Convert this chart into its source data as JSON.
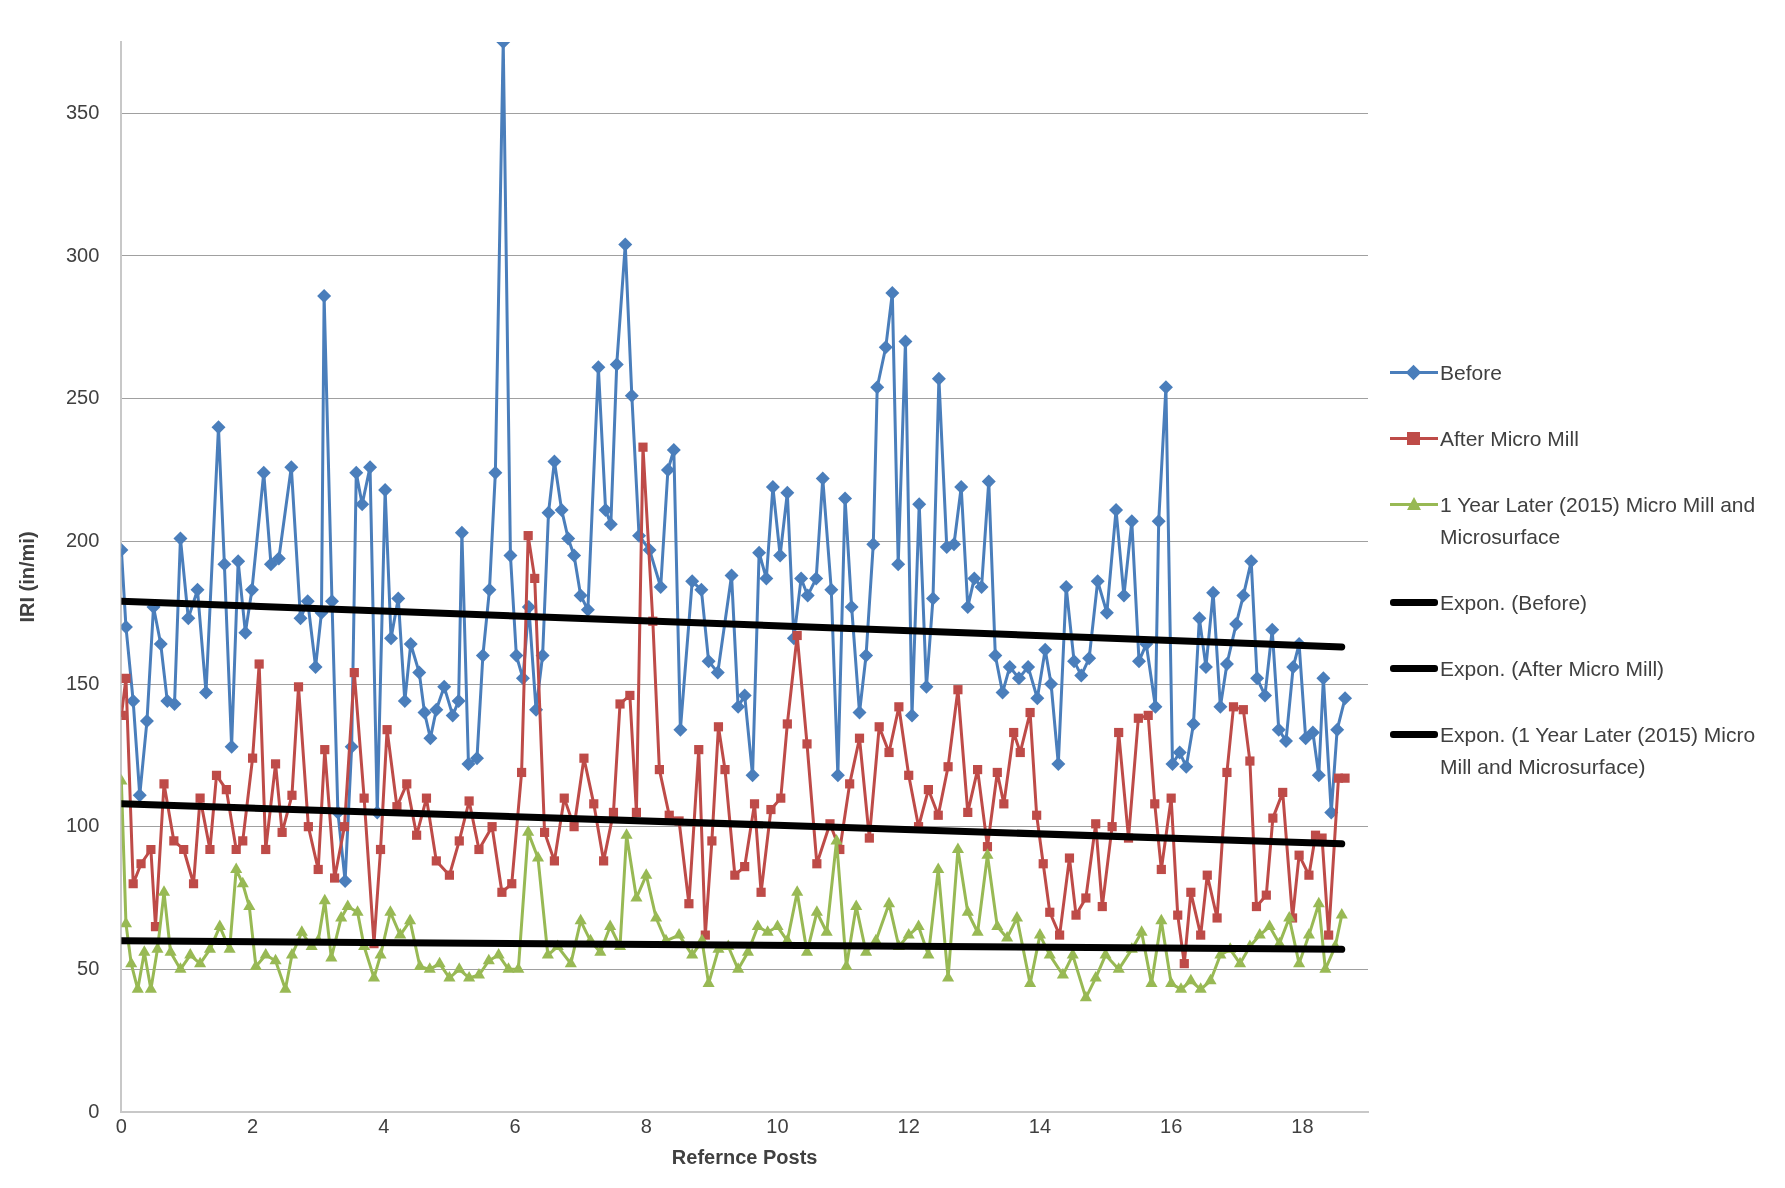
{
  "chart_data": {
    "type": "line",
    "xlabel": "Refernce Posts",
    "ylabel": "IRI (in/mi)",
    "xlim": [
      0,
      19
    ],
    "xticks": [
      0,
      2,
      4,
      6,
      8,
      10,
      12,
      14,
      16,
      18
    ],
    "ylim": [
      0,
      375
    ],
    "yticks": [
      0,
      50,
      100,
      150,
      200,
      250,
      300,
      350
    ],
    "grid": "y",
    "legend": "right",
    "series": [
      {
        "name": "Before",
        "color": "#4a7ebb",
        "marker": "diamond",
        "x": [
          0,
          0.07,
          0.18,
          0.28,
          0.39,
          0.49,
          0.6,
          0.7,
          0.81,
          0.9,
          1.02,
          1.16,
          1.29,
          1.48,
          1.57,
          1.68,
          1.78,
          1.89,
          1.99,
          2.17,
          2.28,
          2.4,
          2.59,
          2.73,
          2.84,
          2.96,
          3.05,
          3.09,
          3.21,
          3.3,
          3.41,
          3.51,
          3.58,
          3.67,
          3.79,
          3.9,
          4.02,
          4.11,
          4.22,
          4.32,
          4.41,
          4.54,
          4.62,
          4.71,
          4.8,
          4.92,
          5.05,
          5.14,
          5.19,
          5.29,
          5.42,
          5.51,
          5.61,
          5.7,
          5.82,
          5.93,
          6.02,
          6.12,
          6.21,
          6.32,
          6.42,
          6.51,
          6.6,
          6.71,
          6.81,
          6.9,
          7.0,
          7.11,
          7.27,
          7.38,
          7.46,
          7.55,
          7.68,
          7.78,
          7.89,
          8.05,
          8.22,
          8.33,
          8.42,
          8.52,
          8.7,
          8.84,
          8.95,
          9.09,
          9.3,
          9.4,
          9.5,
          9.62,
          9.72,
          9.83,
          9.93,
          10.04,
          10.15,
          10.25,
          10.36,
          10.46,
          10.59,
          10.69,
          10.82,
          10.92,
          11.03,
          11.13,
          11.25,
          11.35,
          11.46,
          11.52,
          11.65,
          11.75,
          11.84,
          11.95,
          12.05,
          12.16,
          12.27,
          12.37,
          12.46,
          12.58,
          12.69,
          12.8,
          12.9,
          13.0,
          13.11,
          13.22,
          13.32,
          13.43,
          13.54,
          13.68,
          13.82,
          13.96,
          14.08,
          14.17,
          14.28,
          14.4,
          14.52,
          14.63,
          14.75,
          14.88,
          15.02,
          15.16,
          15.28,
          15.4,
          15.51,
          15.62,
          15.76,
          15.81,
          15.92,
          16.02,
          16.13,
          16.23,
          16.34,
          16.43,
          16.53,
          16.64,
          16.75,
          16.85,
          16.99,
          17.1,
          17.22,
          17.31,
          17.43,
          17.54,
          17.64,
          17.75,
          17.86,
          17.95,
          18.05,
          18.16,
          18.25,
          18.32,
          18.44,
          18.53,
          18.65
        ],
        "values": [
          197,
          170,
          144,
          111,
          137,
          177,
          164,
          144,
          143,
          201,
          173,
          183,
          147,
          240,
          192,
          128,
          193,
          168,
          183,
          224,
          192,
          194,
          226,
          173,
          179,
          156,
          175,
          286,
          179,
          105,
          81,
          128,
          224,
          213,
          226,
          105,
          218,
          166,
          180,
          144,
          164,
          154,
          140,
          131,
          141,
          149,
          139,
          144,
          203,
          122,
          124,
          160,
          183,
          224,
          375,
          195,
          160,
          152,
          177,
          141,
          160,
          210,
          228,
          211,
          201,
          195,
          181,
          176,
          261,
          211,
          206,
          262,
          304,
          251,
          202,
          197,
          184,
          225,
          232,
          134,
          186,
          183,
          158,
          154,
          188,
          142,
          146,
          118,
          196,
          187,
          219,
          195,
          217,
          166,
          187,
          181,
          187,
          222,
          183,
          118,
          215,
          177,
          140,
          160,
          199,
          254,
          268,
          287,
          192,
          270,
          139,
          213,
          149,
          180,
          257,
          198,
          199,
          219,
          177,
          187,
          184,
          221,
          160,
          147,
          156,
          152,
          156,
          145,
          162,
          150,
          122,
          184,
          158,
          153,
          159,
          186,
          175,
          211,
          181,
          207,
          158,
          164,
          142,
          207,
          254,
          122,
          126,
          121,
          136,
          173,
          156,
          182,
          142,
          157,
          171,
          181,
          193,
          152,
          146,
          169,
          134,
          130,
          156,
          164,
          131,
          133,
          118,
          152,
          105,
          134,
          145
        ]
      },
      {
        "name": "After Micro Mill",
        "color": "#be4b48",
        "marker": "square",
        "x": [
          0,
          0.07,
          0.18,
          0.3,
          0.45,
          0.52,
          0.65,
          0.8,
          0.95,
          1.1,
          1.2,
          1.35,
          1.45,
          1.6,
          1.75,
          1.85,
          2.0,
          2.1,
          2.2,
          2.35,
          2.45,
          2.6,
          2.7,
          2.85,
          3.0,
          3.1,
          3.25,
          3.4,
          3.55,
          3.7,
          3.85,
          3.95,
          4.05,
          4.2,
          4.35,
          4.5,
          4.65,
          4.8,
          5.0,
          5.15,
          5.3,
          5.45,
          5.65,
          5.8,
          5.95,
          6.1,
          6.2,
          6.3,
          6.45,
          6.6,
          6.75,
          6.9,
          7.05,
          7.2,
          7.35,
          7.5,
          7.6,
          7.75,
          7.85,
          7.95,
          8.1,
          8.2,
          8.35,
          8.5,
          8.65,
          8.8,
          8.9,
          9.0,
          9.1,
          9.2,
          9.35,
          9.5,
          9.65,
          9.75,
          9.9,
          10.05,
          10.15,
          10.3,
          10.45,
          10.6,
          10.8,
          10.95,
          11.1,
          11.25,
          11.4,
          11.55,
          11.7,
          11.85,
          12.0,
          12.15,
          12.3,
          12.45,
          12.6,
          12.75,
          12.9,
          13.05,
          13.2,
          13.35,
          13.45,
          13.6,
          13.7,
          13.85,
          13.95,
          14.05,
          14.15,
          14.3,
          14.45,
          14.55,
          14.7,
          14.85,
          14.95,
          15.1,
          15.2,
          15.35,
          15.5,
          15.65,
          15.75,
          15.85,
          16.0,
          16.1,
          16.2,
          16.3,
          16.45,
          16.55,
          16.7,
          16.85,
          16.95,
          17.1,
          17.2,
          17.3,
          17.45,
          17.55,
          17.7,
          17.85,
          17.95,
          18.1,
          18.2,
          18.3,
          18.4,
          18.55,
          18.65
        ],
        "values": [
          139,
          152,
          80,
          87,
          92,
          65,
          115,
          95,
          92,
          80,
          110,
          92,
          118,
          113,
          92,
          95,
          124,
          157,
          92,
          122,
          98,
          111,
          149,
          100,
          85,
          127,
          82,
          100,
          154,
          110,
          59,
          92,
          134,
          107,
          115,
          97,
          110,
          88,
          83,
          95,
          109,
          92,
          100,
          77,
          80,
          119,
          202,
          187,
          98,
          88,
          110,
          100,
          124,
          108,
          88,
          105,
          143,
          146,
          105,
          233,
          172,
          120,
          104,
          102,
          73,
          127,
          62,
          95,
          135,
          120,
          83,
          86,
          108,
          77,
          106,
          110,
          136,
          167,
          129,
          87,
          101,
          92,
          115,
          131,
          96,
          135,
          126,
          142,
          118,
          100,
          113,
          104,
          121,
          148,
          105,
          120,
          93,
          119,
          108,
          133,
          126,
          140,
          104,
          87,
          70,
          62,
          89,
          69,
          75,
          101,
          72,
          100,
          133,
          96,
          138,
          139,
          108,
          85,
          110,
          69,
          52,
          77,
          62,
          83,
          68,
          119,
          142,
          141,
          123,
          72,
          76,
          103,
          112,
          68,
          90,
          83,
          97,
          96,
          62,
          117,
          117
        ]
      },
      {
        "name": "1 Year Later (2015) Micro Mill and Microsurface",
        "color": "#98b954",
        "marker": "triangle",
        "x": [
          0,
          0.07,
          0.15,
          0.25,
          0.35,
          0.45,
          0.55,
          0.65,
          0.75,
          0.9,
          1.05,
          1.2,
          1.35,
          1.5,
          1.65,
          1.75,
          1.85,
          1.95,
          2.05,
          2.2,
          2.35,
          2.5,
          2.6,
          2.75,
          2.9,
          3.0,
          3.1,
          3.2,
          3.35,
          3.45,
          3.6,
          3.7,
          3.85,
          3.95,
          4.1,
          4.25,
          4.4,
          4.55,
          4.7,
          4.85,
          5.0,
          5.15,
          5.3,
          5.45,
          5.6,
          5.75,
          5.9,
          6.05,
          6.2,
          6.35,
          6.5,
          6.65,
          6.85,
          7.0,
          7.15,
          7.3,
          7.45,
          7.6,
          7.7,
          7.85,
          8.0,
          8.15,
          8.3,
          8.5,
          8.7,
          8.85,
          8.95,
          9.1,
          9.25,
          9.4,
          9.55,
          9.7,
          9.85,
          10.0,
          10.15,
          10.3,
          10.45,
          10.6,
          10.75,
          10.9,
          11.05,
          11.2,
          11.35,
          11.5,
          11.7,
          11.85,
          12.0,
          12.15,
          12.3,
          12.45,
          12.6,
          12.75,
          12.9,
          13.05,
          13.2,
          13.35,
          13.5,
          13.65,
          13.85,
          14.0,
          14.15,
          14.35,
          14.5,
          14.7,
          14.85,
          15.0,
          15.2,
          15.4,
          15.55,
          15.7,
          15.85,
          16.0,
          16.15,
          16.3,
          16.45,
          16.6,
          16.75,
          16.9,
          17.05,
          17.2,
          17.35,
          17.5,
          17.65,
          17.8,
          17.95,
          18.1,
          18.25,
          18.35,
          18.5,
          18.6
        ],
        "values": [
          116,
          66,
          52,
          43,
          56,
          43,
          57,
          77,
          56,
          50,
          55,
          52,
          57,
          65,
          57,
          85,
          80,
          72,
          51,
          55,
          53,
          43,
          55,
          63,
          58,
          60,
          74,
          54,
          68,
          72,
          70,
          58,
          47,
          55,
          70,
          62,
          67,
          51,
          50,
          52,
          47,
          50,
          47,
          48,
          53,
          55,
          50,
          50,
          98,
          89,
          55,
          58,
          52,
          67,
          60,
          56,
          65,
          58,
          97,
          75,
          83,
          68,
          60,
          62,
          55,
          60,
          45,
          57,
          58,
          50,
          56,
          65,
          63,
          65,
          60,
          77,
          56,
          70,
          63,
          95,
          51,
          72,
          56,
          60,
          73,
          58,
          62,
          65,
          55,
          85,
          47,
          92,
          70,
          63,
          90,
          65,
          61,
          68,
          45,
          62,
          55,
          48,
          55,
          40,
          47,
          55,
          50,
          57,
          63,
          45,
          67,
          45,
          43,
          46,
          43,
          46,
          55,
          57,
          52,
          58,
          62,
          65,
          59,
          68,
          52,
          62,
          73,
          50,
          58,
          69
        ]
      },
      {
        "name": "Expon. (Before)",
        "color": "#000000",
        "marker": "none",
        "x": [
          0,
          18.6
        ],
        "values": [
          179,
          163
        ]
      },
      {
        "name": "Expon. (After Micro Mill)",
        "color": "#000000",
        "marker": "none",
        "x": [
          0,
          18.6
        ],
        "values": [
          108,
          94
        ]
      },
      {
        "name": "Expon. (1 Year Later (2015) Micro Mill and Microsurface)",
        "color": "#000000",
        "marker": "none",
        "x": [
          0,
          18.6
        ],
        "values": [
          60,
          57
        ]
      }
    ]
  }
}
